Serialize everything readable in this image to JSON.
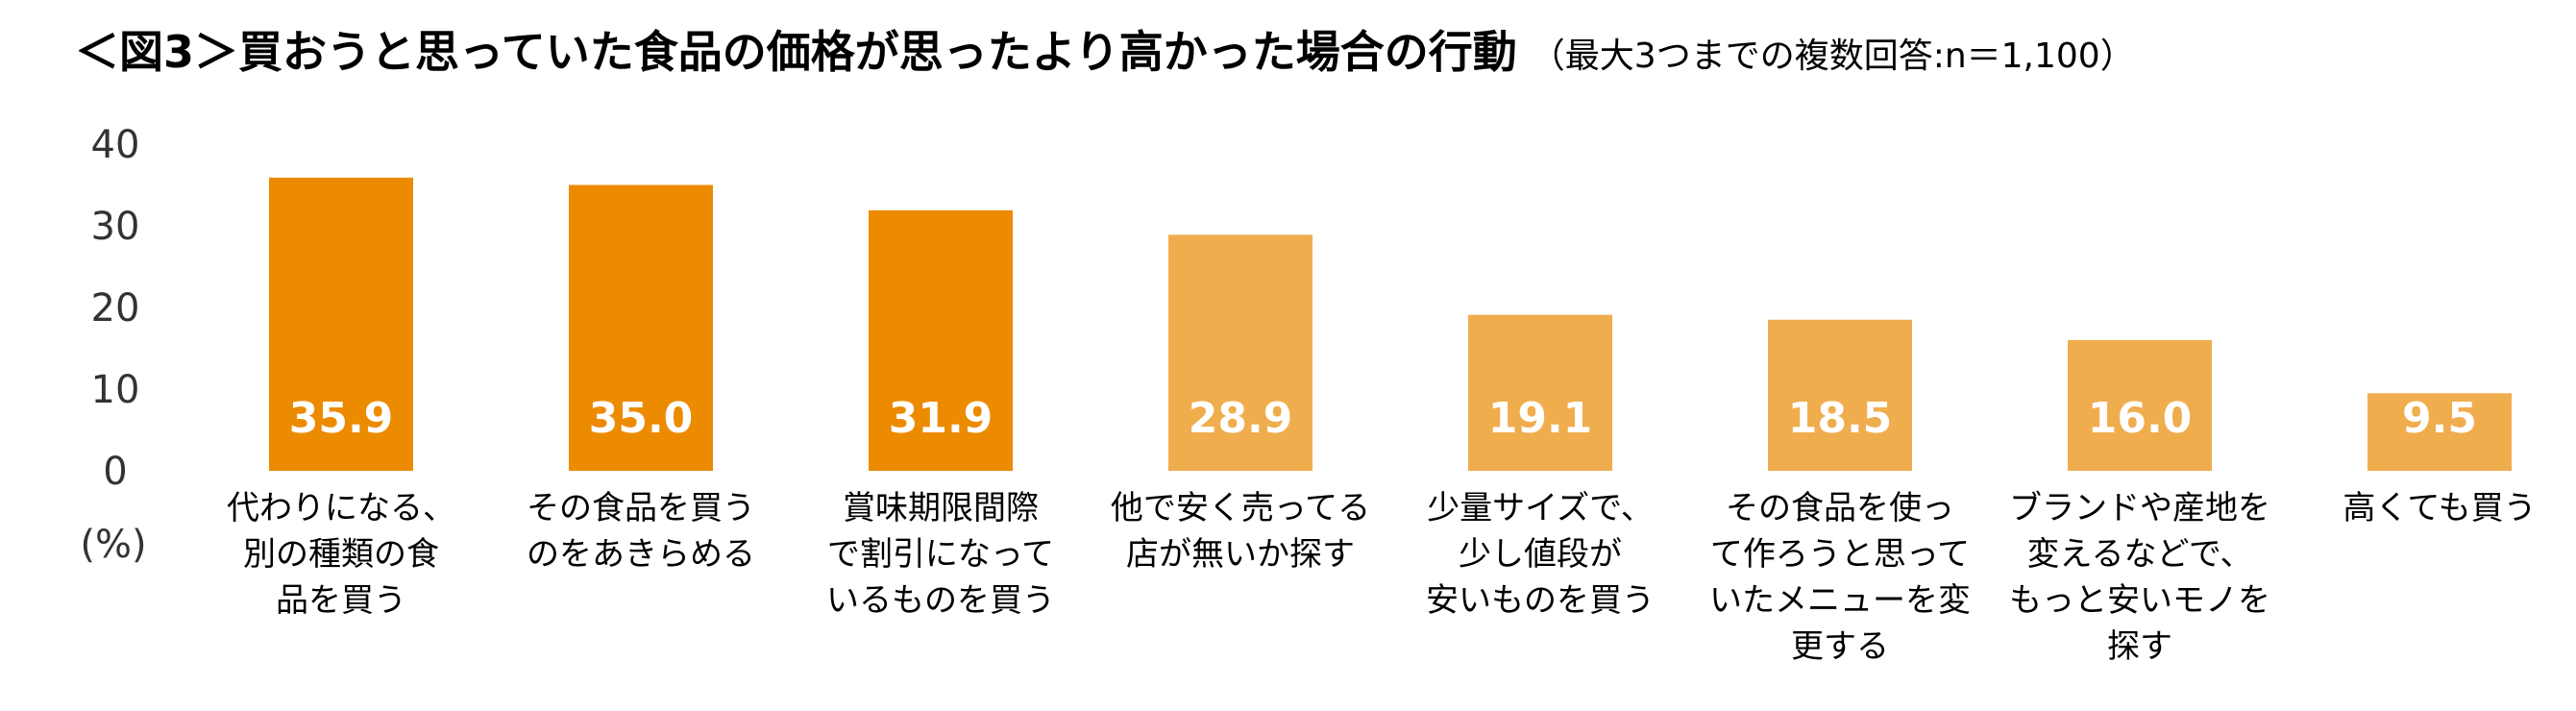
{
  "title": "＜図3＞買おうと思っていた食品の価格が思ったより高かった場合の行動",
  "subtitle": "（最大3つまでの複数回答:n＝1,100）",
  "colors": {
    "dark_bar": "#ED8B00",
    "light_bar": "#F0AD4E"
  },
  "chart_data": {
    "type": "bar",
    "title": "＜図3＞買おうと思っていた食品の価格が思ったより高かった場合の行動",
    "subtitle": "（最大3つまでの複数回答:n＝1,100）",
    "ylabel": "(%)",
    "ylim": [
      0,
      40
    ],
    "yticks": [
      "0",
      "10",
      "20",
      "30",
      "40"
    ],
    "grid": false,
    "categories": [
      [
        "代わりになる、",
        "別の種類の食",
        "品を買う"
      ],
      [
        "その食品を買う",
        "のをあきらめる"
      ],
      [
        "賞味期限間際",
        "で割引になって",
        "いるものを買う"
      ],
      [
        "他で安く売ってる",
        "店が無いか探す"
      ],
      [
        "少量サイズで、",
        "少し値段が",
        "安いものを買う"
      ],
      [
        "その食品を使っ",
        "て作ろうと思って",
        "いたメニューを変",
        "更する"
      ],
      [
        "ブランドや産地を",
        "変えるなどで、",
        "もっと安いモノを",
        "探す"
      ],
      [
        "高くても買う"
      ]
    ],
    "values": [
      35.9,
      35.0,
      31.9,
      28.9,
      19.1,
      18.5,
      16.0,
      9.5
    ],
    "value_labels": [
      "35.9",
      "35.0",
      "31.9",
      "28.9",
      "19.1",
      "18.5",
      "16.0",
      "9.5"
    ],
    "highlighted_top": 3
  }
}
